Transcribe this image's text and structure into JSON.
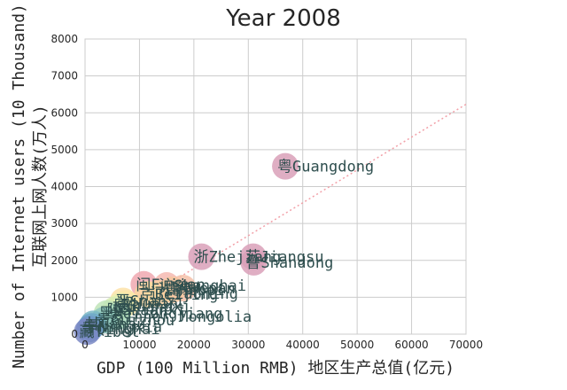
{
  "chart_data": {
    "type": "scatter",
    "title": "Year 2008",
    "xlabel": "GDP (100 Million RMB) 地区生产总值(亿元)",
    "ylabel_line1": "Number of Internet users (10 Thousand)",
    "ylabel_line2": "互联网上网人数(万人)",
    "xlim": [
      0,
      70000
    ],
    "ylim": [
      0,
      8000
    ],
    "xticks": [
      0,
      10000,
      20000,
      30000,
      40000,
      50000,
      60000,
      70000
    ],
    "yticks": [
      0,
      1000,
      2000,
      3000,
      4000,
      5000,
      6000,
      7000,
      8000
    ],
    "xtick_labels": [
      "0",
      "10000",
      "20000",
      "30000",
      "40000",
      "50000",
      "60000",
      "70000"
    ],
    "ytick_labels": [
      "0",
      "1000",
      "2000",
      "3000",
      "4000",
      "5000",
      "6000",
      "7000",
      "8000"
    ],
    "grid": true,
    "trendline": {
      "slope": 0.089,
      "color": "#f2a0a8"
    },
    "points": [
      {
        "x": 36800,
        "y": 4550,
        "label": "粤Guangdong",
        "color": "#d9a0b8"
      },
      {
        "x": 21400,
        "y": 2100,
        "label": "浙Zhejiang",
        "color": "#d9a0b8"
      },
      {
        "x": 30900,
        "y": 2100,
        "label": "苏Jiangsu",
        "color": "#d9a0b8"
      },
      {
        "x": 31000,
        "y": 1950,
        "label": "鲁Shandong",
        "color": "#d9a0b8"
      },
      {
        "x": 10800,
        "y": 1350,
        "label": "闽Fujian",
        "color": "#f0a8b0"
      },
      {
        "x": 15000,
        "y": 1320,
        "label": "沪Shanghai",
        "color": "#f5b8b0"
      },
      {
        "x": 18000,
        "y": 1250,
        "label": "豫Henan",
        "color": "#f5c0a8"
      },
      {
        "x": 16000,
        "y": 1200,
        "label": "冀Hebei",
        "color": "#f7c8a0"
      },
      {
        "x": 13500,
        "y": 1100,
        "label": "辽Liaoning",
        "color": "#f9d0a0"
      },
      {
        "x": 11500,
        "y": 1080,
        "label": "京Beijing",
        "color": "#fbd8a0"
      },
      {
        "x": 7000,
        "y": 900,
        "label": "晋Shanxi",
        "color": "#fde2a8"
      },
      {
        "x": 7500,
        "y": 830,
        "label": "湘Hunan",
        "color": "#fbe8a8"
      },
      {
        "x": 6500,
        "y": 760,
        "label": "桂Guangxi",
        "color": "#eaf0b0"
      },
      {
        "x": 5500,
        "y": 660,
        "label": "陕Shaanxi",
        "color": "#d6ecb4"
      },
      {
        "x": 4000,
        "y": 560,
        "label": "黑Heilongjiang",
        "color": "#bfe4b8"
      },
      {
        "x": 6000,
        "y": 480,
        "label": "蒙Inner Mongolia",
        "color": "#a8d8bc"
      },
      {
        "x": 3500,
        "y": 380,
        "label": "贵Guizhou",
        "color": "#90c8c0"
      },
      {
        "x": 1500,
        "y": 280,
        "label": "甘Gansu",
        "color": "#7ab8c4"
      },
      {
        "x": 1200,
        "y": 210,
        "label": "宁Ningxia",
        "color": "#70a8c8"
      },
      {
        "x": 800,
        "y": 140,
        "label": "青Qinghai",
        "color": "#7098c8"
      },
      {
        "x": 400,
        "y": 70,
        "label": "藏Tibet",
        "color": "#7a88c4"
      }
    ]
  }
}
